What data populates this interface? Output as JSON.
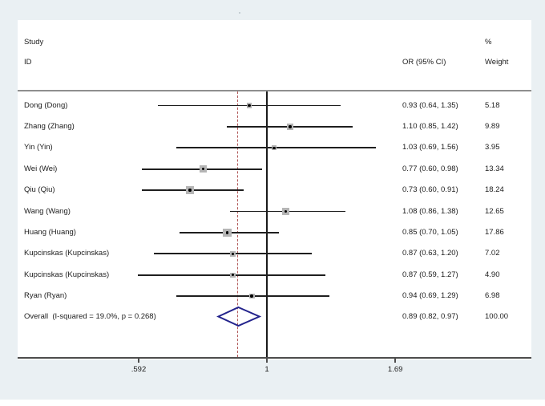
{
  "colors": {
    "figure_background": "#eaf0f3",
    "panel_background": "#ffffff",
    "text": "#1c1c1c",
    "separator": "#8f8f8f",
    "axis_line": "#4d4d4d",
    "null_line": "#1a1a1a",
    "pooled_dashed_line": "#b25b5b",
    "ci_line": "#1f1f1f",
    "marker_square": "#b5b5b5",
    "marker_dot": "#000000",
    "diamond_stroke": "#23238c",
    "stray_mark": "#b7c3c9"
  },
  "header": {
    "study_line1": "Study",
    "study_line2": "ID",
    "or_header": "OR (95% CI)",
    "pct_header": "%",
    "weight_header": "Weight"
  },
  "chart_data": {
    "type": "forest",
    "x_scale": "log",
    "x_ticks": [
      {
        "value": 0.592,
        "label": ".592"
      },
      {
        "value": 1.0,
        "label": "1"
      },
      {
        "value": 1.69,
        "label": "1.69"
      }
    ],
    "null_value": 1.0,
    "pooled_value": 0.89,
    "studies": [
      {
        "label": "Dong (Dong)",
        "or": 0.93,
        "ci_low": 0.64,
        "ci_high": 1.35,
        "weight": 5.18,
        "or_ci_text": "0.93 (0.64, 1.35)",
        "weight_text": "5.18"
      },
      {
        "label": "Zhang (Zhang)",
        "or": 1.1,
        "ci_low": 0.85,
        "ci_high": 1.42,
        "weight": 9.89,
        "or_ci_text": "1.10 (0.85, 1.42)",
        "weight_text": "9.89"
      },
      {
        "label": "Yin (Yin)",
        "or": 1.03,
        "ci_low": 0.69,
        "ci_high": 1.56,
        "weight": 3.95,
        "or_ci_text": "1.03 (0.69, 1.56)",
        "weight_text": "3.95"
      },
      {
        "label": "Wei (Wei)",
        "or": 0.77,
        "ci_low": 0.6,
        "ci_high": 0.98,
        "weight": 13.34,
        "or_ci_text": "0.77 (0.60, 0.98)",
        "weight_text": "13.34"
      },
      {
        "label": "Qiu (Qiu)",
        "or": 0.73,
        "ci_low": 0.6,
        "ci_high": 0.91,
        "weight": 18.24,
        "or_ci_text": "0.73 (0.60, 0.91)",
        "weight_text": "18.24"
      },
      {
        "label": "Wang (Wang)",
        "or": 1.08,
        "ci_low": 0.86,
        "ci_high": 1.38,
        "weight": 12.65,
        "or_ci_text": "1.08 (0.86, 1.38)",
        "weight_text": "12.65"
      },
      {
        "label": "Huang (Huang)",
        "or": 0.85,
        "ci_low": 0.7,
        "ci_high": 1.05,
        "weight": 17.86,
        "or_ci_text": "0.85 (0.70, 1.05)",
        "weight_text": "17.86"
      },
      {
        "label": "Kupcinskas (Kupcinskas)",
        "or": 0.87,
        "ci_low": 0.63,
        "ci_high": 1.2,
        "weight": 7.02,
        "or_ci_text": "0.87 (0.63, 1.20)",
        "weight_text": "7.02"
      },
      {
        "label": "Kupcinskas (Kupcinskas)",
        "or": 0.87,
        "ci_low": 0.59,
        "ci_high": 1.27,
        "weight": 4.9,
        "or_ci_text": "0.87 (0.59, 1.27)",
        "weight_text": "4.90"
      },
      {
        "label": "Ryan (Ryan)",
        "or": 0.94,
        "ci_low": 0.69,
        "ci_high": 1.29,
        "weight": 6.98,
        "or_ci_text": "0.94 (0.69, 1.29)",
        "weight_text": "6.98"
      }
    ],
    "overall": {
      "label": "Overall  (I-squared = 19.0%, p = 0.268)",
      "or": 0.89,
      "ci_low": 0.82,
      "ci_high": 0.97,
      "weight": 100.0,
      "or_ci_text": "0.89 (0.82, 0.97)",
      "weight_text": "100.00"
    }
  }
}
